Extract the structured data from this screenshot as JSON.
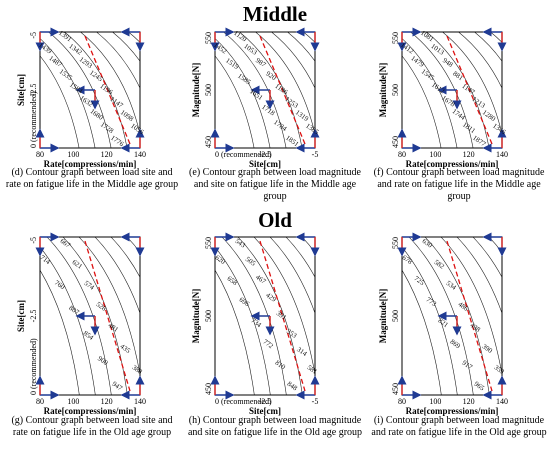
{
  "sections": [
    {
      "title": "Middle"
    },
    {
      "title": "Old"
    }
  ],
  "panels": [
    {
      "caption": "(d) Contour graph between load site and rate on fatigue life in the Middle age group",
      "xlabel": "Rate[compressions/min]",
      "ylabel": "Site[cm]",
      "xticks": [
        "80",
        "100",
        "120",
        "140"
      ],
      "yticks": [
        "0 (recommended)",
        "-2.5",
        "-5"
      ],
      "contour_labels": [
        "1391",
        "1342",
        "1293",
        "1245",
        "1196",
        "1147",
        "1098",
        "1056",
        "1439",
        "1487",
        "1535",
        "1584",
        "1632",
        "1680",
        "1728",
        "1776"
      ]
    },
    {
      "caption": "(e) Contour graph between load magnitude and site on fatigue life in the Middle age group",
      "xlabel": "Site[cm]",
      "ylabel": "Magnitude[N]",
      "xticks": [
        "0 (recommended)",
        "-2.5",
        "-5"
      ],
      "yticks": [
        "450",
        "500",
        "550"
      ],
      "contour_labels": [
        "1120",
        "1053",
        "987",
        "920",
        "1186",
        "1253",
        "1319",
        "1385",
        "1452",
        "1519",
        "1585",
        "1651",
        "1718",
        "1784",
        "1851"
      ]
    },
    {
      "caption": "(f) Contour graph between load magnitude and rate on fatigue life in the Middle age group",
      "xlabel": "Rate[compressions/min]",
      "ylabel": "Magnitude[N]",
      "xticks": [
        "80",
        "100",
        "120",
        "140"
      ],
      "yticks": [
        "450",
        "500",
        "550"
      ],
      "contour_labels": [
        "1081",
        "1013",
        "948",
        "881",
        "1147",
        "1213",
        "1280",
        "1346",
        "1412",
        "1479",
        "1545",
        "1612",
        "1678",
        "1744",
        "1811",
        "1877"
      ]
    },
    {
      "caption": "(g) Contour graph between load site and rate on fatigue life in the Old age group",
      "xlabel": "Rate[compressions/min]",
      "ylabel": "Site[cm]",
      "xticks": [
        "80",
        "100",
        "120",
        "140"
      ],
      "yticks": [
        "0 (recommended)",
        "-2.5",
        "-5"
      ],
      "contour_labels": [
        "667",
        "621",
        "574",
        "528",
        "481",
        "435",
        "388",
        "714",
        "760",
        "807",
        "854",
        "900",
        "947"
      ]
    },
    {
      "caption": "(h) Contour graph between load magnitude and site on fatigue life in the Old age group",
      "xlabel": "Site[cm]",
      "ylabel": "Magnitude[N]",
      "xticks": [
        "0 (recommended)",
        "-2.5",
        "-5"
      ],
      "yticks": [
        "450",
        "500",
        "550"
      ],
      "contour_labels": [
        "543",
        "505",
        "467",
        "429",
        "391",
        "353",
        "314",
        "581",
        "620",
        "658",
        "696",
        "734",
        "772",
        "810",
        "848"
      ]
    },
    {
      "caption": "(i) Contour graph between load magnitude and rate on fatigue life in the Old age group",
      "xlabel": "Rate[compressions/min]",
      "ylabel": "Magnitude[N]",
      "xticks": [
        "80",
        "100",
        "120",
        "140"
      ],
      "yticks": [
        "450",
        "500",
        "550"
      ],
      "contour_labels": [
        "630",
        "582",
        "534",
        "486",
        "438",
        "390",
        "353",
        "678",
        "725",
        "773",
        "821",
        "869",
        "917",
        "965"
      ]
    }
  ]
}
